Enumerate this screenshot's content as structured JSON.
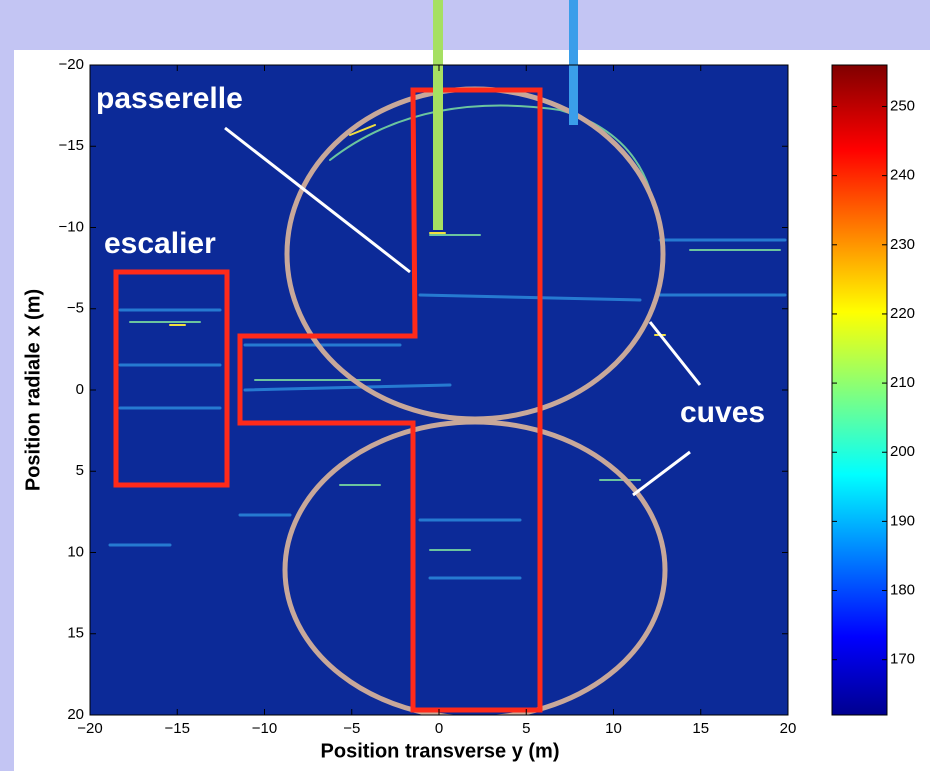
{
  "chart_data": {
    "type": "image",
    "xlabel": "Position transverse y (m)",
    "ylabel": "Position radiale x (m)",
    "xlim": [
      -20,
      20
    ],
    "ylim": [
      -20,
      20
    ],
    "yreverse": true,
    "xticks": [
      {
        "value": -20,
        "label": "−20"
      },
      {
        "value": -15,
        "label": "−15"
      },
      {
        "value": -10,
        "label": "−10"
      },
      {
        "value": -5,
        "label": "−5"
      },
      0,
      5,
      10,
      15,
      20
    ],
    "yticks": [
      {
        "value": -20,
        "label": "−20"
      },
      {
        "value": -15,
        "label": "−15"
      },
      {
        "value": -10,
        "label": "−10"
      },
      {
        "value": -5,
        "label": "−5"
      },
      0,
      5,
      10,
      15,
      20
    ],
    "colorbar": {
      "lim": [
        162,
        256
      ],
      "ticks": [
        170,
        180,
        190,
        200,
        210,
        220,
        230,
        240,
        250
      ]
    },
    "annotations": [
      "passerelle",
      "escalier",
      "cuves"
    ]
  }
}
